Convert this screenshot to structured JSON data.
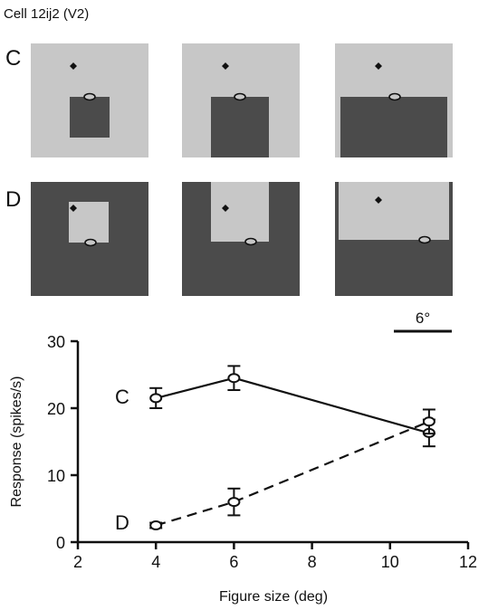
{
  "header": {
    "cell_label": "Cell 12ij2 (V2)"
  },
  "stimuli": {
    "row_c_label": "C",
    "row_d_label": "D",
    "scale_bar_label": "6°",
    "colors": {
      "light_gray": "#c7c7c7",
      "dark_gray": "#4b4b4b",
      "fixation": "#111111"
    }
  },
  "chart_data": {
    "type": "line",
    "xlabel": "Figure size (deg)",
    "ylabel": "Response (spikes/s)",
    "xlim": [
      2,
      12
    ],
    "ylim": [
      0,
      30
    ],
    "xticks": [
      2,
      4,
      6,
      8,
      10,
      12
    ],
    "yticks": [
      0,
      10,
      20,
      30
    ],
    "series": [
      {
        "name": "C",
        "line_style": "solid",
        "x": [
          4,
          6,
          11
        ],
        "y": [
          21.5,
          24.5,
          16.3
        ],
        "err": [
          1.5,
          1.8,
          2.0
        ]
      },
      {
        "name": "D",
        "line_style": "dashed",
        "x": [
          4,
          6,
          11
        ],
        "y": [
          2.5,
          6.0,
          18.0
        ],
        "err": [
          0.4,
          2.0,
          1.8
        ]
      }
    ]
  }
}
